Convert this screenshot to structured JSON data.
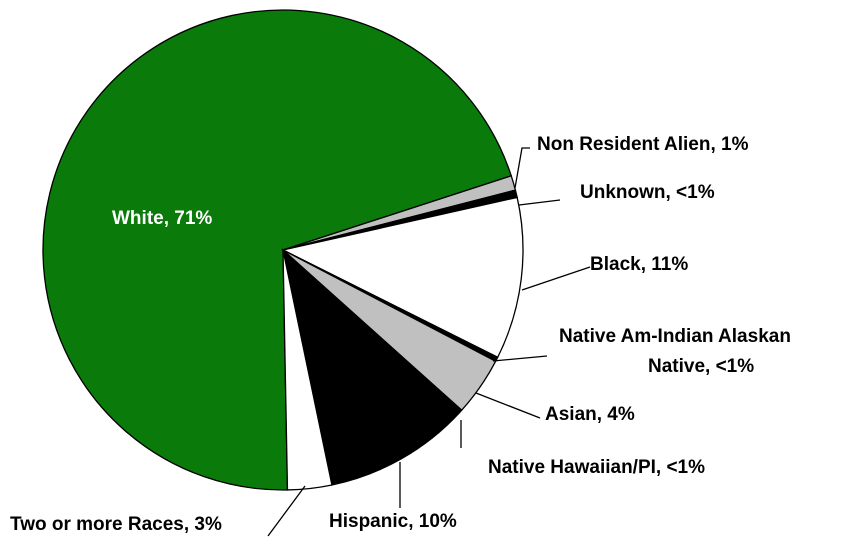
{
  "chart_data": {
    "type": "pie",
    "title": "",
    "slices": [
      {
        "key": "white",
        "category": "White",
        "value": 71,
        "label": "White, 71%",
        "color": "#0a7a0a"
      },
      {
        "key": "nra",
        "category": "Non Resident Alien",
        "value": 1,
        "label": "Non Resident Alien, 1%",
        "color": "#c0c0c0"
      },
      {
        "key": "unknown",
        "category": "Unknown",
        "value": 0.5,
        "label": "Unknown, <1%",
        "color": "#000000"
      },
      {
        "key": "black",
        "category": "Black",
        "value": 11,
        "label": "Black, 11%",
        "color": "#ffffff"
      },
      {
        "key": "natam",
        "category": "Native Am-Indian Alaskan Native",
        "value": 0.3,
        "label_lines": [
          "Native Am-Indian Alaskan",
          "Native, <1%"
        ],
        "color": "#000000"
      },
      {
        "key": "asian",
        "category": "Asian",
        "value": 4,
        "label": "Asian, 4%",
        "color": "#c0c0c0"
      },
      {
        "key": "nhpi",
        "category": "Native Hawaiian/PI",
        "value": 0.2,
        "label": "Native Hawaiian/PI, <1%",
        "color": "#000000"
      },
      {
        "key": "hispanic",
        "category": "Hispanic",
        "value": 10,
        "label": "Hispanic, 10%",
        "color": "#000000"
      },
      {
        "key": "twoplus",
        "category": "Two or more Races",
        "value": 3,
        "label": "Two or more Races, 3%",
        "color": "#ffffff"
      }
    ]
  }
}
